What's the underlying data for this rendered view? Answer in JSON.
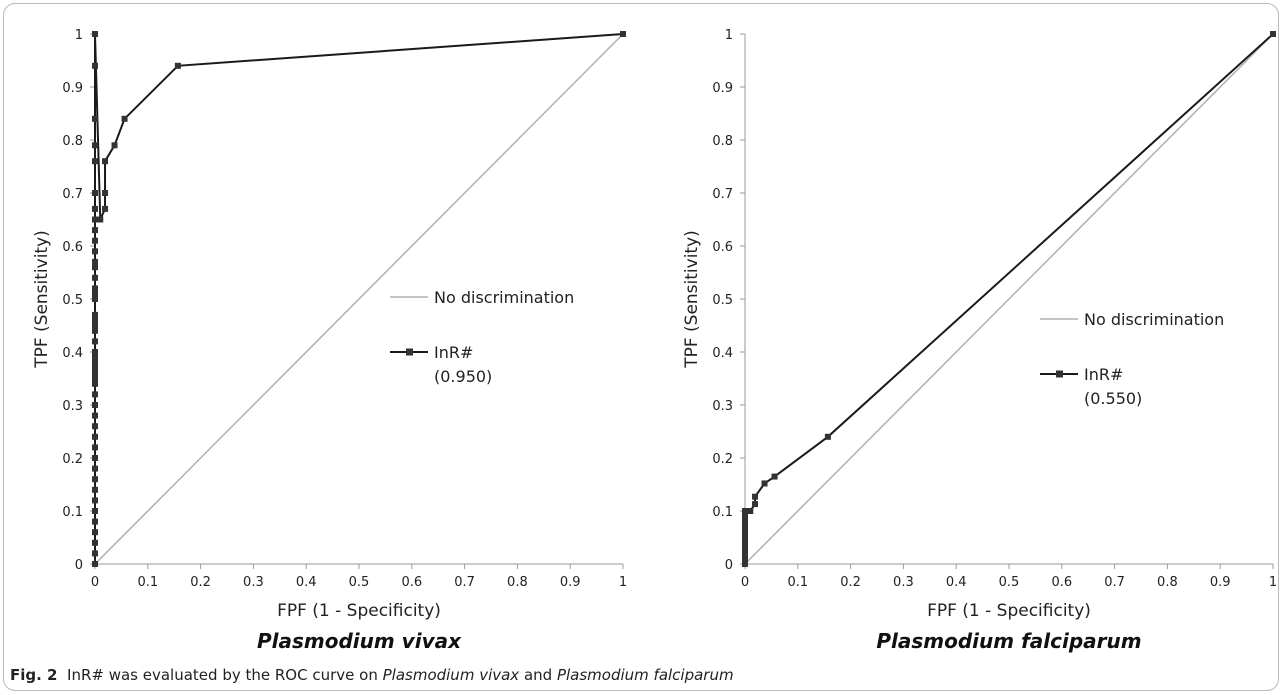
{
  "chart_data": [
    {
      "type": "line",
      "subtitle": "Plasmodium vivax",
      "xlabel": "FPF (1 - Specificity)",
      "ylabel": "TPF (Sensitivity)",
      "xlim": [
        0,
        1
      ],
      "ylim": [
        0,
        1
      ],
      "xticks": [
        "0",
        "0.1",
        "0.2",
        "0.3",
        "0.4",
        "0.5",
        "0.6",
        "0.7",
        "0.8",
        "0.9",
        "1"
      ],
      "yticks": [
        "0",
        "0.1",
        "0.2",
        "0.3",
        "0.4",
        "0.5",
        "0.6",
        "0.7",
        "0.8",
        "0.9",
        "1"
      ],
      "legend": {
        "placement": "center",
        "entries": [
          {
            "label": "No discrimination",
            "color": "#b0b0b0"
          },
          {
            "label": "InR#",
            "value": "(0.950)",
            "color": "#1a1a1a"
          }
        ]
      },
      "series": [
        {
          "name": "No discrimination",
          "color": "#b0b0b0",
          "x": [
            0,
            1
          ],
          "y": [
            0,
            1
          ]
        },
        {
          "name": "InR#",
          "color": "#1a1a1a",
          "marker": "square",
          "x": [
            0,
            0,
            0,
            0,
            0,
            0,
            0,
            0,
            0,
            0,
            0,
            0,
            0,
            0,
            0,
            0,
            0,
            0,
            0,
            0,
            0,
            0,
            0,
            0,
            0,
            0,
            0,
            0,
            0,
            0,
            0,
            0,
            0,
            0,
            0,
            0,
            0,
            0,
            0,
            0,
            0,
            0,
            0,
            0,
            0,
            0,
            0.01,
            0.019,
            0.019,
            0.019,
            0.037,
            0.056,
            0.157,
            1
          ],
          "y": [
            0,
            0.02,
            0.04,
            0.06,
            0.08,
            0.1,
            0.12,
            0.14,
            0.16,
            0.18,
            0.2,
            0.22,
            0.24,
            0.26,
            0.28,
            0.3,
            0.32,
            0.34,
            0.35,
            0.36,
            0.37,
            0.38,
            0.39,
            0.4,
            0.42,
            0.44,
            0.45,
            0.46,
            0.47,
            0.5,
            0.51,
            0.52,
            0.54,
            0.59,
            0.61,
            0.63,
            0.65,
            0.67,
            0.7,
            0.76,
            0.79,
            0.84,
            0.94,
            1,
            0.56,
            0.57,
            0.65,
            0.67,
            0.7,
            0.76,
            0.79,
            0.84,
            0.94,
            1
          ]
        }
      ]
    },
    {
      "type": "line",
      "subtitle": "Plasmodium falciparum",
      "xlabel": "FPF (1 - Specificity)",
      "ylabel": "TPF (Sensitivity)",
      "xlim": [
        0,
        1
      ],
      "ylim": [
        0,
        1
      ],
      "xticks": [
        "0",
        "0.1",
        "0.2",
        "0.3",
        "0.4",
        "0.5",
        "0.6",
        "0.7",
        "0.8",
        "0.9",
        "1"
      ],
      "yticks": [
        "0",
        "0.1",
        "0.2",
        "0.3",
        "0.4",
        "0.5",
        "0.6",
        "0.7",
        "0.8",
        "0.9",
        "1"
      ],
      "legend": {
        "placement": "center-right",
        "entries": [
          {
            "label": "No discrimination",
            "color": "#b0b0b0"
          },
          {
            "label": "InR#",
            "value": "(0.550)",
            "color": "#1a1a1a"
          }
        ]
      },
      "series": [
        {
          "name": "No discrimination",
          "color": "#b0b0b0",
          "x": [
            0,
            1
          ],
          "y": [
            0,
            1
          ]
        },
        {
          "name": "InR#",
          "color": "#1a1a1a",
          "marker": "square",
          "x": [
            0,
            0,
            0,
            0,
            0,
            0,
            0,
            0,
            0,
            0,
            0,
            0.01,
            0.019,
            0.019,
            0.037,
            0.056,
            0.157,
            1
          ],
          "y": [
            0,
            0.01,
            0.02,
            0.03,
            0.04,
            0.05,
            0.06,
            0.07,
            0.08,
            0.09,
            0.1,
            0.1,
            0.113,
            0.127,
            0.152,
            0.165,
            0.24,
            1
          ]
        }
      ]
    }
  ],
  "caption": {
    "label": "Fig. 2",
    "text_before": "InR# was evaluated by the ROC curve on ",
    "species_1": "Plasmodium vivax",
    "conjunction": " and ",
    "species_2": "Plasmodium falciparum"
  }
}
